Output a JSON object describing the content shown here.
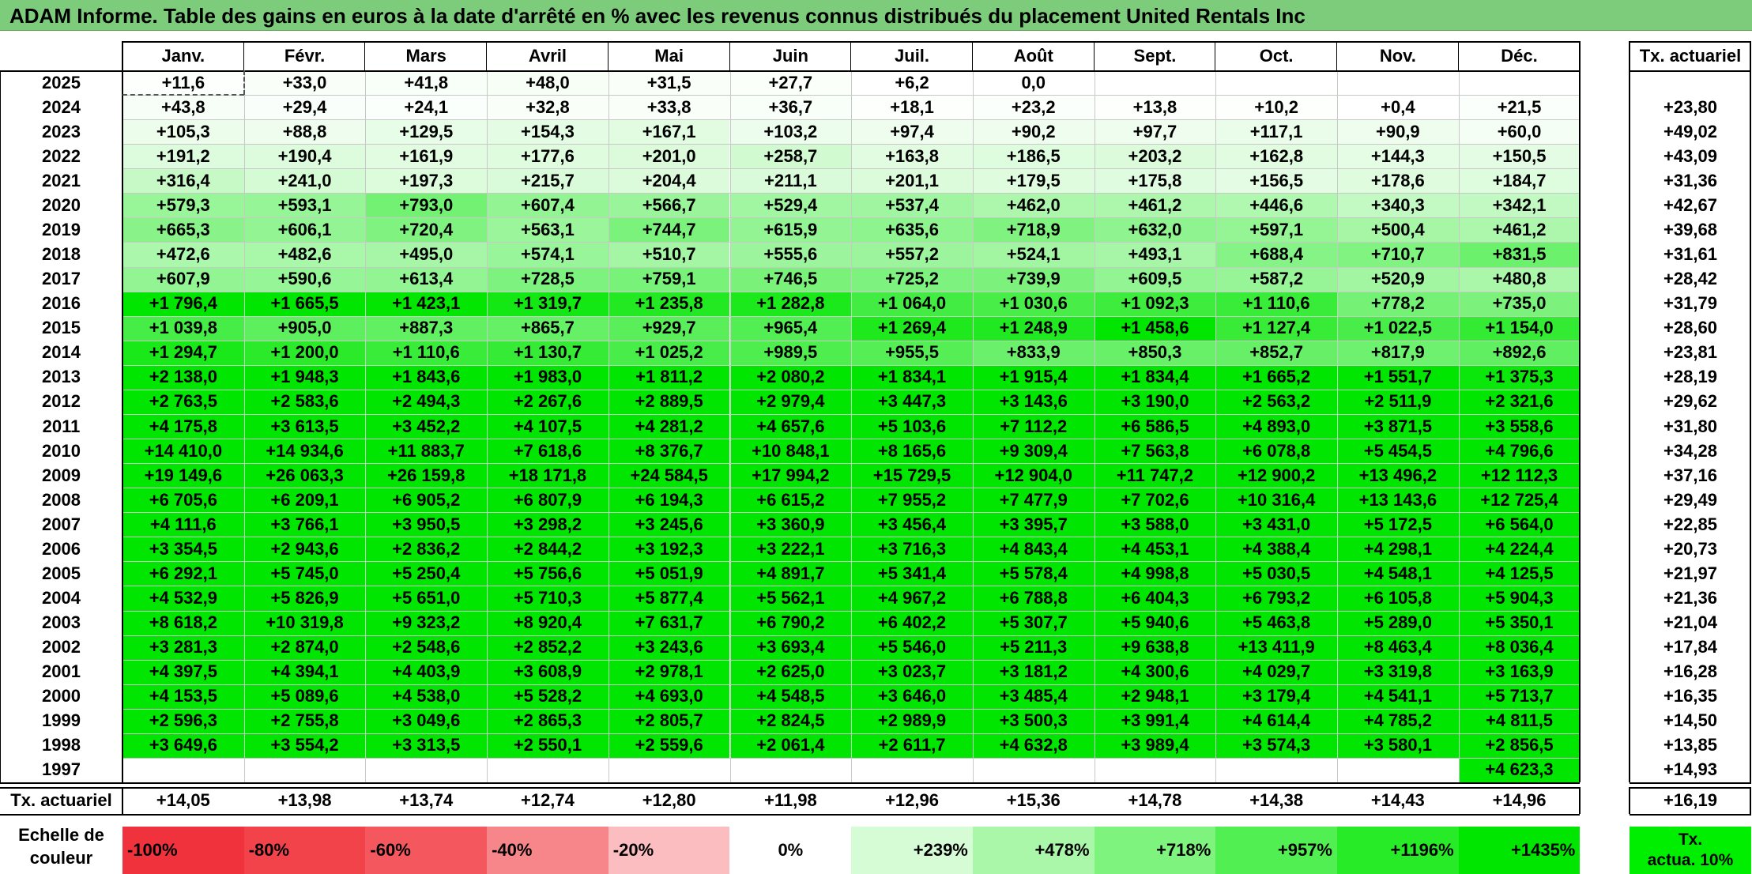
{
  "title": "ADAM Informe. Table des gains en euros à la date d'arrêté en % avec les revenus connus distribués du placement United Rentals Inc",
  "months": [
    "Janv.",
    "Févr.",
    "Mars",
    "Avril",
    "Mai",
    "Juin",
    "Juil.",
    "Août",
    "Sept.",
    "Oct.",
    "Nov.",
    "Déc."
  ],
  "tx_header": "Tx. actuariel",
  "rows": [
    {
      "year": "2025",
      "values": [
        "+11,6",
        "+33,0",
        "+41,8",
        "+48,0",
        "+31,5",
        "+27,7",
        "+6,2",
        "0,0",
        "",
        "",
        "",
        ""
      ],
      "tx": ""
    },
    {
      "year": "2024",
      "values": [
        "+43,8",
        "+29,4",
        "+24,1",
        "+32,8",
        "+33,8",
        "+36,7",
        "+18,1",
        "+23,2",
        "+13,8",
        "+10,2",
        "+0,4",
        "+21,5"
      ],
      "tx": "+23,80"
    },
    {
      "year": "2023",
      "values": [
        "+105,3",
        "+88,8",
        "+129,5",
        "+154,3",
        "+167,1",
        "+103,2",
        "+97,4",
        "+90,2",
        "+97,7",
        "+117,1",
        "+90,9",
        "+60,0"
      ],
      "tx": "+49,02"
    },
    {
      "year": "2022",
      "values": [
        "+191,2",
        "+190,4",
        "+161,9",
        "+177,6",
        "+201,0",
        "+258,7",
        "+163,8",
        "+186,5",
        "+203,2",
        "+162,8",
        "+144,3",
        "+150,5"
      ],
      "tx": "+43,09"
    },
    {
      "year": "2021",
      "values": [
        "+316,4",
        "+241,0",
        "+197,3",
        "+215,7",
        "+204,4",
        "+211,1",
        "+201,1",
        "+179,5",
        "+175,8",
        "+156,5",
        "+178,6",
        "+184,7"
      ],
      "tx": "+31,36"
    },
    {
      "year": "2020",
      "values": [
        "+579,3",
        "+593,1",
        "+793,0",
        "+607,4",
        "+566,7",
        "+529,4",
        "+537,4",
        "+462,0",
        "+461,2",
        "+446,6",
        "+340,3",
        "+342,1"
      ],
      "tx": "+42,67"
    },
    {
      "year": "2019",
      "values": [
        "+665,3",
        "+606,1",
        "+720,4",
        "+563,1",
        "+744,7",
        "+615,9",
        "+635,6",
        "+718,9",
        "+632,0",
        "+597,1",
        "+500,4",
        "+461,2"
      ],
      "tx": "+39,68"
    },
    {
      "year": "2018",
      "values": [
        "+472,6",
        "+482,6",
        "+495,0",
        "+574,1",
        "+510,7",
        "+555,6",
        "+557,2",
        "+524,1",
        "+493,1",
        "+688,4",
        "+710,7",
        "+831,5"
      ],
      "tx": "+31,61"
    },
    {
      "year": "2017",
      "values": [
        "+607,9",
        "+590,6",
        "+613,4",
        "+728,5",
        "+759,1",
        "+746,5",
        "+725,2",
        "+739,9",
        "+609,5",
        "+587,2",
        "+520,9",
        "+480,8"
      ],
      "tx": "+28,42"
    },
    {
      "year": "2016",
      "values": [
        "+1 796,4",
        "+1 665,5",
        "+1 423,1",
        "+1 319,7",
        "+1 235,8",
        "+1 282,8",
        "+1 064,0",
        "+1 030,6",
        "+1 092,3",
        "+1 110,6",
        "+778,2",
        "+735,0"
      ],
      "tx": "+31,79"
    },
    {
      "year": "2015",
      "values": [
        "+1 039,8",
        "+905,0",
        "+887,3",
        "+865,7",
        "+929,7",
        "+965,4",
        "+1 269,4",
        "+1 248,9",
        "+1 458,6",
        "+1 127,4",
        "+1 022,5",
        "+1 154,0"
      ],
      "tx": "+28,60"
    },
    {
      "year": "2014",
      "values": [
        "+1 294,7",
        "+1 200,0",
        "+1 110,6",
        "+1 130,7",
        "+1 025,2",
        "+989,5",
        "+955,5",
        "+833,9",
        "+850,3",
        "+852,7",
        "+817,9",
        "+892,6"
      ],
      "tx": "+23,81"
    },
    {
      "year": "2013",
      "values": [
        "+2 138,0",
        "+1 948,3",
        "+1 843,6",
        "+1 983,0",
        "+1 811,2",
        "+2 080,2",
        "+1 834,1",
        "+1 915,4",
        "+1 834,4",
        "+1 665,2",
        "+1 551,7",
        "+1 375,3"
      ],
      "tx": "+28,19"
    },
    {
      "year": "2012",
      "values": [
        "+2 763,5",
        "+2 583,6",
        "+2 494,3",
        "+2 267,6",
        "+2 889,5",
        "+2 979,4",
        "+3 447,3",
        "+3 143,6",
        "+3 190,0",
        "+2 563,2",
        "+2 511,9",
        "+2 321,6"
      ],
      "tx": "+29,62"
    },
    {
      "year": "2011",
      "values": [
        "+4 175,8",
        "+3 613,5",
        "+3 452,2",
        "+4 107,5",
        "+4 281,2",
        "+4 657,6",
        "+5 103,6",
        "+7 112,2",
        "+6 586,5",
        "+4 893,0",
        "+3 871,5",
        "+3 558,6"
      ],
      "tx": "+31,80"
    },
    {
      "year": "2010",
      "values": [
        "+14 410,0",
        "+14 934,6",
        "+11 883,7",
        "+7 618,6",
        "+8 376,7",
        "+10 848,1",
        "+8 165,6",
        "+9 309,4",
        "+7 563,8",
        "+6 078,8",
        "+5 454,5",
        "+4 796,6"
      ],
      "tx": "+34,28"
    },
    {
      "year": "2009",
      "values": [
        "+19 149,6",
        "+26 063,3",
        "+26 159,8",
        "+18 171,8",
        "+24 584,5",
        "+17 994,2",
        "+15 729,5",
        "+12 904,0",
        "+11 747,2",
        "+12 900,2",
        "+13 496,2",
        "+12 112,3"
      ],
      "tx": "+37,16"
    },
    {
      "year": "2008",
      "values": [
        "+6 705,6",
        "+6 209,1",
        "+6 905,2",
        "+6 807,9",
        "+6 194,3",
        "+6 615,2",
        "+7 955,2",
        "+7 477,9",
        "+7 702,6",
        "+10 316,4",
        "+13 143,6",
        "+12 725,4"
      ],
      "tx": "+29,49"
    },
    {
      "year": "2007",
      "values": [
        "+4 111,6",
        "+3 766,1",
        "+3 950,5",
        "+3 298,2",
        "+3 245,6",
        "+3 360,9",
        "+3 456,4",
        "+3 395,7",
        "+3 588,0",
        "+3 431,0",
        "+5 172,5",
        "+6 564,0"
      ],
      "tx": "+22,85"
    },
    {
      "year": "2006",
      "values": [
        "+3 354,5",
        "+2 943,6",
        "+2 836,2",
        "+2 844,2",
        "+3 192,3",
        "+3 222,1",
        "+3 716,3",
        "+4 843,4",
        "+4 453,1",
        "+4 388,4",
        "+4 298,1",
        "+4 224,4"
      ],
      "tx": "+20,73"
    },
    {
      "year": "2005",
      "values": [
        "+6 292,1",
        "+5 745,0",
        "+5 250,4",
        "+5 756,6",
        "+5 051,9",
        "+4 891,7",
        "+5 341,4",
        "+5 578,4",
        "+4 998,8",
        "+5 030,5",
        "+4 548,1",
        "+4 125,5"
      ],
      "tx": "+21,97"
    },
    {
      "year": "2004",
      "values": [
        "+4 532,9",
        "+5 826,9",
        "+5 651,0",
        "+5 710,3",
        "+5 877,4",
        "+5 562,1",
        "+4 967,2",
        "+6 788,8",
        "+6 404,3",
        "+6 793,2",
        "+6 105,8",
        "+5 904,3"
      ],
      "tx": "+21,36"
    },
    {
      "year": "2003",
      "values": [
        "+8 618,2",
        "+10 319,8",
        "+9 323,2",
        "+8 920,4",
        "+7 631,7",
        "+6 790,2",
        "+6 402,2",
        "+5 307,7",
        "+5 940,6",
        "+5 463,8",
        "+5 289,0",
        "+5 350,1"
      ],
      "tx": "+21,04"
    },
    {
      "year": "2002",
      "values": [
        "+3 281,3",
        "+2 874,0",
        "+2 548,6",
        "+2 852,2",
        "+3 243,6",
        "+3 693,4",
        "+5 546,0",
        "+5 211,3",
        "+9 638,8",
        "+13 411,9",
        "+8 463,4",
        "+8 036,4"
      ],
      "tx": "+17,84"
    },
    {
      "year": "2001",
      "values": [
        "+4 397,5",
        "+4 394,1",
        "+4 403,9",
        "+3 608,9",
        "+2 978,1",
        "+2 625,0",
        "+3 023,7",
        "+3 181,2",
        "+4 300,6",
        "+4 029,7",
        "+3 319,8",
        "+3 163,9"
      ],
      "tx": "+16,28"
    },
    {
      "year": "2000",
      "values": [
        "+4 153,5",
        "+5 089,6",
        "+4 538,0",
        "+5 528,2",
        "+4 693,0",
        "+4 548,5",
        "+3 646,0",
        "+3 485,4",
        "+2 948,1",
        "+3 179,4",
        "+4 541,1",
        "+5 713,7"
      ],
      "tx": "+16,35"
    },
    {
      "year": "1999",
      "values": [
        "+2 596,3",
        "+2 755,8",
        "+3 049,6",
        "+2 865,3",
        "+2 805,7",
        "+2 824,5",
        "+2 989,9",
        "+3 500,3",
        "+3 991,4",
        "+4 614,4",
        "+4 785,2",
        "+4 811,5"
      ],
      "tx": "+14,50"
    },
    {
      "year": "1998",
      "values": [
        "+3 649,6",
        "+3 554,2",
        "+3 313,5",
        "+2 550,1",
        "+2 559,6",
        "+2 061,4",
        "+2 611,7",
        "+4 632,8",
        "+3 989,4",
        "+3 574,3",
        "+3 580,1",
        "+2 856,5"
      ],
      "tx": "+13,85"
    },
    {
      "year": "1997",
      "values": [
        "",
        "",
        "",
        "",
        "",
        "",
        "",
        "",
        "",
        "",
        "",
        "+4 623,3"
      ],
      "tx": "+14,93"
    }
  ],
  "tx_row": {
    "label": "Tx. actuariel",
    "values": [
      "+14,05",
      "+13,98",
      "+13,74",
      "+12,74",
      "+12,80",
      "+11,98",
      "+12,96",
      "+15,36",
      "+14,78",
      "+14,38",
      "+14,43",
      "+14,96"
    ],
    "total": "+16,19"
  },
  "scale": {
    "label_line1": "Echelle de",
    "label_line2": "couleur",
    "items": [
      {
        "label": "-100%",
        "color": "#f0323c",
        "align": "left"
      },
      {
        "label": "-80%",
        "color": "#f2434b",
        "align": "left"
      },
      {
        "label": "-60%",
        "color": "#f4575d",
        "align": "left"
      },
      {
        "label": "-40%",
        "color": "#f7868a",
        "align": "left"
      },
      {
        "label": "-20%",
        "color": "#fbbdbf",
        "align": "left"
      },
      {
        "label": "0%",
        "color": "#ffffff",
        "align": "center"
      },
      {
        "label": "+239%",
        "color": "#d6fcd6",
        "align": "right"
      },
      {
        "label": "+478%",
        "color": "#aaf7aa",
        "align": "right"
      },
      {
        "label": "+718%",
        "color": "#7ef37e",
        "align": "right"
      },
      {
        "label": "+957%",
        "color": "#52ef52",
        "align": "right"
      },
      {
        "label": "+1196%",
        "color": "#28eb28",
        "align": "right"
      },
      {
        "label": "+1435%",
        "color": "#00e600",
        "align": "right"
      }
    ],
    "tx_line1": "Tx.",
    "tx_line2": "actua. 10%"
  },
  "colors": {
    "title_bg": "#7ccc7c",
    "positive_max": "#00e600",
    "tx_legend": "#00ee00"
  }
}
